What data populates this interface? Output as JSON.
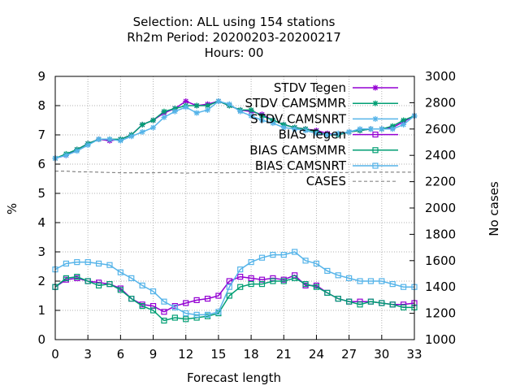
{
  "title": {
    "line1": "Selection: ALL using   154 stations",
    "line2": "Rh2m   Period: 20200203-20200217",
    "line3": "Hours:  00"
  },
  "chart_data": {
    "type": "line",
    "xlabel": "Forecast length",
    "ylabel": "%",
    "y2label": "No cases",
    "xlim": [
      0,
      33
    ],
    "ylim": [
      0,
      9
    ],
    "y2lim": [
      1000,
      3000
    ],
    "xticks": [
      0,
      3,
      6,
      9,
      12,
      15,
      18,
      21,
      24,
      27,
      30,
      33
    ],
    "yticks": [
      0,
      1,
      2,
      3,
      4,
      5,
      6,
      7,
      8,
      9
    ],
    "y2ticks": [
      1000,
      1200,
      1400,
      1600,
      1800,
      2000,
      2200,
      2400,
      2600,
      2800,
      3000
    ],
    "grid": true,
    "legend_position": "top-right",
    "x": [
      0,
      1,
      2,
      3,
      4,
      5,
      6,
      7,
      8,
      9,
      10,
      11,
      12,
      13,
      14,
      15,
      16,
      17,
      18,
      19,
      20,
      21,
      22,
      23,
      24,
      25,
      26,
      27,
      28,
      29,
      30,
      31,
      32,
      33
    ],
    "series": [
      {
        "name": "STDV Tegen",
        "color": "#9400d3",
        "marker": "star",
        "axis": "y1",
        "values": [
          6.2,
          6.3,
          6.5,
          6.7,
          6.85,
          6.8,
          6.85,
          7.0,
          7.35,
          7.5,
          7.75,
          7.9,
          8.15,
          8.0,
          8.05,
          8.15,
          8.0,
          7.85,
          7.8,
          7.7,
          7.5,
          7.35,
          7.25,
          7.2,
          7.15,
          7.05,
          7.0,
          7.1,
          7.15,
          7.2,
          7.2,
          7.25,
          7.45,
          7.65
        ]
      },
      {
        "name": "STDV CAMSMMR",
        "color": "#009e73",
        "marker": "star",
        "axis": "y1",
        "values": [
          6.2,
          6.35,
          6.5,
          6.7,
          6.85,
          6.85,
          6.85,
          7.0,
          7.35,
          7.5,
          7.8,
          7.9,
          8.0,
          8.0,
          8.0,
          8.15,
          8.0,
          7.85,
          7.85,
          7.65,
          7.5,
          7.35,
          7.25,
          7.2,
          7.1,
          7.0,
          7.0,
          7.1,
          7.15,
          7.2,
          7.2,
          7.3,
          7.5,
          7.65
        ]
      },
      {
        "name": "STDV CAMSNRT",
        "color": "#56b4e9",
        "marker": "star",
        "axis": "y1",
        "values": [
          6.2,
          6.3,
          6.45,
          6.65,
          6.85,
          6.85,
          6.8,
          6.95,
          7.1,
          7.25,
          7.6,
          7.8,
          7.95,
          7.75,
          7.85,
          8.15,
          8.05,
          7.8,
          7.65,
          7.5,
          7.4,
          7.25,
          7.2,
          7.15,
          7.05,
          7.0,
          7.05,
          7.1,
          7.2,
          7.2,
          7.2,
          7.2,
          7.35,
          7.65
        ]
      },
      {
        "name": "BIAS Tegen",
        "color": "#9400d3",
        "marker": "square",
        "axis": "y1",
        "values": [
          1.8,
          2.05,
          2.1,
          2.0,
          1.95,
          1.9,
          1.75,
          1.4,
          1.2,
          1.15,
          0.95,
          1.15,
          1.25,
          1.35,
          1.4,
          1.5,
          2.0,
          2.15,
          2.1,
          2.05,
          2.1,
          2.05,
          2.2,
          1.85,
          1.85,
          1.6,
          1.4,
          1.3,
          1.3,
          1.3,
          1.25,
          1.2,
          1.2,
          1.25
        ]
      },
      {
        "name": "BIAS CAMSMMR",
        "color": "#009e73",
        "marker": "square",
        "axis": "y1",
        "values": [
          1.8,
          2.1,
          2.15,
          2.0,
          1.85,
          1.9,
          1.7,
          1.4,
          1.15,
          1.0,
          0.65,
          0.75,
          0.7,
          0.75,
          0.8,
          0.9,
          1.5,
          1.8,
          1.9,
          1.9,
          2.0,
          2.0,
          2.1,
          1.9,
          1.8,
          1.6,
          1.4,
          1.3,
          1.2,
          1.3,
          1.25,
          1.2,
          1.1,
          1.1
        ]
      },
      {
        "name": "BIAS CAMSNRT",
        "color": "#56b4e9",
        "marker": "square",
        "axis": "y1",
        "values": [
          2.4,
          2.6,
          2.65,
          2.65,
          2.6,
          2.55,
          2.3,
          2.1,
          1.85,
          1.65,
          1.3,
          1.1,
          0.9,
          0.85,
          0.85,
          0.95,
          1.8,
          2.4,
          2.65,
          2.8,
          2.9,
          2.9,
          3.0,
          2.7,
          2.6,
          2.35,
          2.2,
          2.1,
          2.0,
          2.0,
          2.0,
          1.9,
          1.8,
          1.8
        ]
      },
      {
        "name": "CASES",
        "color": "#888888",
        "marker": "none",
        "dashed": true,
        "axis": "y2",
        "values": [
          2280,
          2280,
          2275,
          2275,
          2272,
          2270,
          2268,
          2268,
          2268,
          2268,
          2270,
          2268,
          2265,
          2268,
          2270,
          2268,
          2268,
          2270,
          2270,
          2270,
          2272,
          2270,
          2270,
          2272,
          2272,
          2272,
          2270,
          2270,
          2272,
          2272,
          2272,
          2272,
          2272,
          2272
        ]
      }
    ]
  }
}
